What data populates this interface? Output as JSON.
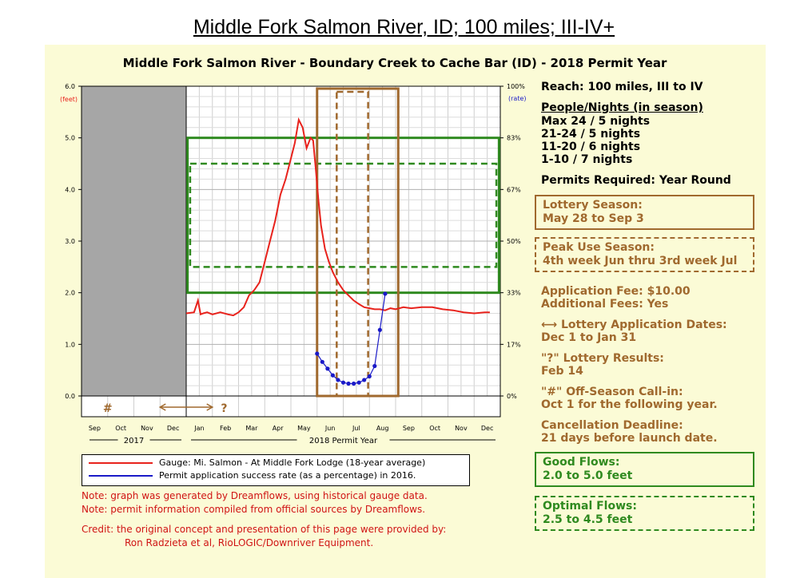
{
  "page_title": "Middle Fork Salmon River, ID; 100 miles; III-IV+",
  "chart_data": {
    "type": "line",
    "title": "Middle Fork Salmon River - Boundary Creek to Cache Bar (ID) - 2018 Permit Year",
    "left_axis": {
      "unit": "(feet)",
      "ticks": [
        "0.0",
        "1.0",
        "2.0",
        "3.0",
        "4.0",
        "5.0",
        "6.0"
      ],
      "ylim": [
        0,
        6
      ]
    },
    "right_axis": {
      "unit": "(rate)",
      "ticks": [
        "0%",
        "17%",
        "33%",
        "50%",
        "67%",
        "83%",
        "100%"
      ]
    },
    "months": [
      "Sep",
      "Oct",
      "Nov",
      "Dec",
      "Jan",
      "Feb",
      "Mar",
      "Apr",
      "May",
      "Jun",
      "Jul",
      "Aug",
      "Sep",
      "Oct",
      "Nov",
      "Dec"
    ],
    "year_labels": [
      "2017",
      "2018 Permit Year"
    ],
    "off_season_marker": "#",
    "results_marker": "?",
    "grid": true,
    "series": [
      {
        "name": "Gauge: Mi. Salmon - At Middle Fork Lodge (18-year average)",
        "color": "#e8221c",
        "x": [
          4.0,
          4.3,
          4.45,
          4.55,
          4.65,
          4.8,
          5.0,
          5.3,
          5.6,
          5.8,
          6.0,
          6.2,
          6.4,
          6.6,
          6.8,
          7.0,
          7.2,
          7.4,
          7.6,
          7.8,
          8.0,
          8.15,
          8.3,
          8.45,
          8.6,
          8.75,
          8.85,
          8.95,
          9.05,
          9.15,
          9.3,
          9.45,
          9.6,
          9.8,
          10.0,
          10.2,
          10.4,
          10.6,
          10.8,
          11.0,
          11.2,
          11.4,
          11.6,
          11.8,
          12.0,
          12.3,
          12.6,
          13.0,
          13.4,
          13.8,
          14.2,
          14.6,
          15.0,
          15.4,
          15.6
        ],
        "y": [
          1.6,
          1.62,
          1.85,
          1.58,
          1.6,
          1.62,
          1.58,
          1.62,
          1.58,
          1.56,
          1.62,
          1.72,
          1.95,
          2.05,
          2.2,
          2.6,
          3.0,
          3.4,
          3.9,
          4.2,
          4.6,
          4.9,
          5.35,
          5.2,
          4.8,
          5.0,
          4.95,
          4.4,
          3.8,
          3.3,
          2.85,
          2.6,
          2.4,
          2.2,
          2.05,
          1.95,
          1.85,
          1.78,
          1.72,
          1.7,
          1.68,
          1.68,
          1.66,
          1.7,
          1.68,
          1.72,
          1.7,
          1.72,
          1.72,
          1.68,
          1.66,
          1.62,
          1.6,
          1.62,
          1.62
        ]
      },
      {
        "name": "Permit application success rate (as a percentage) in 2016.",
        "color": "#1a1ac8",
        "x": [
          9.0,
          9.2,
          9.4,
          9.6,
          9.8,
          10.0,
          10.2,
          10.4,
          10.6,
          10.8,
          11.0,
          11.2,
          11.4,
          11.6
        ],
        "y": [
          0.82,
          0.66,
          0.53,
          0.4,
          0.31,
          0.26,
          0.24,
          0.24,
          0.26,
          0.31,
          0.38,
          0.58,
          1.28,
          1.98
        ]
      }
    ],
    "bands": {
      "good_flows": [
        2.0,
        5.0
      ],
      "optimal_flows": [
        2.5,
        4.5
      ],
      "lottery_season": [
        9.0,
        12.1
      ],
      "peak_use_season": [
        9.75,
        10.95
      ]
    }
  },
  "sidebar": {
    "reach": "Reach: 100 miles, III to IV",
    "people_title": "People/Nights (in season)",
    "people": [
      "Max 24 / 5 nights",
      "21-24 / 5 nights",
      "11-20 / 6 nights",
      "1-10 / 7 nights"
    ],
    "permits": "Permits Required: Year Round",
    "lottery_title": "Lottery Season:",
    "lottery_dates": "May 28 to Sep 3",
    "peak_title": "Peak Use Season:",
    "peak_dates": "4th week Jun thru 3rd week Jul",
    "fee": "Application Fee: $10.00",
    "additional": "Additional Fees: Yes",
    "app_dates_title": "Lottery Application Dates:",
    "app_dates": "Dec 1 to Jan 31",
    "results_title": "\"?\" Lottery Results:",
    "results": "Feb 14",
    "callin_title": "\"#\" Off-Season Call-in:",
    "callin": "Oct 1 for the following year.",
    "cancel_title": "Cancellation Deadline:",
    "cancel": "21 days before launch date.",
    "good_title": "Good Flows:",
    "good": "2.0 to 5.0 feet",
    "optimal_title": "Optimal Flows:",
    "optimal": "2.5 to 4.5 feet",
    "colors": {
      "brown": "#a0692e",
      "green": "#2f8a1f",
      "red": "#e8221c",
      "blue": "#1a1ac8"
    }
  },
  "notes": [
    "Note: graph was generated by Dreamflows, using historical gauge data.",
    "Note: permit information compiled from official sources by Dreamflows."
  ],
  "credit": [
    "Credit: the original concept and presentation of this page were provided by:",
    "Ron Radzieta et al, RioLOGIC/Downriver Equipment."
  ]
}
